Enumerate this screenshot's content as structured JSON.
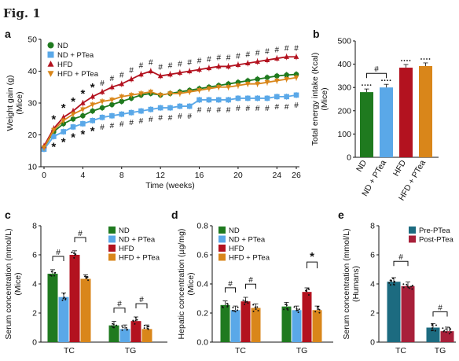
{
  "figure": {
    "title": "Fig. 1"
  },
  "colors": {
    "ND": "#1f7a1f",
    "ND_PTea": "#5aa8e8",
    "HFD": "#b3121f",
    "HFD_PTea": "#d9861a",
    "Pre": "#1c6b80",
    "Post": "#a8203a"
  },
  "chart_data": [
    {
      "panel": "a",
      "type": "line",
      "xlabel": "Time (weeks)",
      "ylabel": "Weight gain (g)",
      "ylabel2": "(Mice)",
      "xticks": [
        0,
        4,
        8,
        12,
        16,
        20,
        24,
        26
      ],
      "ylim": [
        10,
        50
      ],
      "yticks": [
        10,
        20,
        30,
        40,
        50
      ],
      "x": [
        0,
        1,
        2,
        3,
        4,
        5,
        6,
        7,
        8,
        9,
        10,
        11,
        12,
        13,
        14,
        15,
        16,
        17,
        18,
        19,
        20,
        21,
        22,
        23,
        24,
        25,
        26
      ],
      "series": [
        {
          "name": "ND",
          "color": "#1f7a1f",
          "marker": "circle",
          "values": [
            16,
            21,
            23.5,
            25,
            26,
            27.5,
            28.5,
            29.5,
            30.5,
            31.5,
            32.5,
            33,
            32.5,
            33,
            33.5,
            34,
            34.5,
            35,
            35.5,
            36,
            36.5,
            37,
            37.5,
            38,
            38.5,
            38.8,
            39
          ]
        },
        {
          "name": "ND + PTea",
          "color": "#5aa8e8",
          "marker": "square",
          "values": [
            15.5,
            19.5,
            21,
            22.5,
            23.5,
            24.5,
            25.5,
            26,
            26.5,
            27,
            27.5,
            28,
            28.5,
            28.5,
            29,
            29,
            31,
            31,
            31,
            31,
            31.5,
            31.5,
            31.5,
            31.5,
            32,
            32,
            32.5
          ]
        },
        {
          "name": "HFD",
          "color": "#b3121f",
          "marker": "triangle",
          "values": [
            16.5,
            22,
            25.5,
            27.5,
            30,
            32,
            33.5,
            35,
            36,
            37.5,
            39,
            40,
            38.5,
            39,
            39.5,
            40,
            40.5,
            41,
            41.5,
            41.5,
            42,
            42.5,
            43,
            43.5,
            44,
            44.5,
            44.5
          ]
        },
        {
          "name": "HFD + PTea",
          "color": "#d9861a",
          "marker": "triangle-down",
          "values": [
            16,
            21.5,
            24.5,
            26.5,
            28,
            29.5,
            30.5,
            31,
            32,
            32.5,
            33,
            33.5,
            32.5,
            33,
            33,
            33.5,
            34,
            34.5,
            35,
            35,
            35.5,
            36,
            36,
            36.5,
            37,
            37.5,
            38
          ]
        }
      ],
      "annotations": {
        "star_weeks": [
          1,
          2,
          3,
          4,
          5
        ],
        "hash_weeks": [
          6,
          7,
          8,
          9,
          10,
          11,
          12,
          13,
          14,
          15,
          16,
          17,
          18,
          19,
          20,
          21,
          22,
          23,
          24,
          25,
          26
        ],
        "star": "*",
        "hash": "#"
      }
    },
    {
      "panel": "b",
      "type": "bar",
      "ylabel": "Total energy intake (Kcal)",
      "ylabel2": "(Mice)",
      "ylim": [
        0,
        500
      ],
      "yticks": [
        0,
        100,
        200,
        300,
        400,
        500
      ],
      "categories": [
        "ND",
        "ND + PTea",
        "HFD",
        "HFD + PTea"
      ],
      "values": [
        280,
        300,
        385,
        392
      ],
      "annotation": "#"
    },
    {
      "panel": "c",
      "type": "bar",
      "ylabel": "Serum concentration (mmol/L)",
      "ylabel2": "(Mice)",
      "ylim": [
        0,
        8
      ],
      "yticks": [
        0,
        2,
        4,
        6,
        8
      ],
      "categories": [
        "TC",
        "TG"
      ],
      "series": [
        {
          "name": "ND",
          "values": [
            4.7,
            1.15
          ]
        },
        {
          "name": "ND + PTea",
          "values": [
            3.1,
            0.9
          ]
        },
        {
          "name": "HFD",
          "values": [
            6.0,
            1.45
          ]
        },
        {
          "name": "HFD + PTea",
          "values": [
            4.35,
            0.9
          ]
        }
      ],
      "annotation": "#"
    },
    {
      "panel": "d",
      "type": "bar",
      "ylabel": "Hepatic concentration (µg/mg)",
      "ylabel2": "(Mice)",
      "ylim": [
        0,
        0.8
      ],
      "yticks": [
        0,
        0.2,
        0.4,
        0.6,
        0.8
      ],
      "categories": [
        "TC",
        "TG"
      ],
      "series": [
        {
          "name": "ND",
          "values": [
            0.255,
            0.245
          ]
        },
        {
          "name": "ND + PTea",
          "values": [
            0.22,
            0.22
          ]
        },
        {
          "name": "HFD",
          "values": [
            0.28,
            0.345
          ]
        },
        {
          "name": "HFD + PTea",
          "values": [
            0.235,
            0.22
          ]
        }
      ],
      "annotation": "#",
      "annotation_star": "*"
    },
    {
      "panel": "e",
      "type": "bar",
      "ylabel": "Serum concentration (mmol/L)",
      "ylabel2": "(Humans)",
      "ylim": [
        0,
        8
      ],
      "yticks": [
        0,
        2,
        4,
        6,
        8
      ],
      "categories": [
        "TC",
        "TG"
      ],
      "series": [
        {
          "name": "Pre-PTea",
          "values": [
            4.15,
            1.0
          ]
        },
        {
          "name": "Post-PTea",
          "values": [
            3.85,
            0.75
          ]
        }
      ],
      "annotation": "#"
    }
  ]
}
